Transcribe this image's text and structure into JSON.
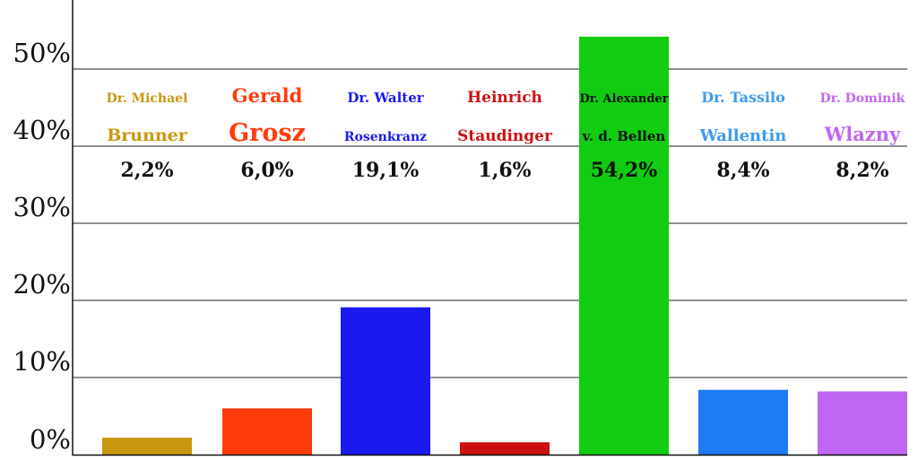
{
  "chart_data": {
    "type": "bar",
    "ylim": [
      0,
      59
    ],
    "y_ticks": [
      {
        "value": 0,
        "label": "0%"
      },
      {
        "value": 10,
        "label": "10%"
      },
      {
        "value": 20,
        "label": "20%"
      },
      {
        "value": 30,
        "label": "30%"
      },
      {
        "value": 40,
        "label": "40%"
      },
      {
        "value": 50,
        "label": "50%"
      }
    ],
    "grid": true,
    "categories": [
      {
        "first": "Dr. Michael",
        "last": "Brunner",
        "value": 2.2,
        "value_label": "2,2%",
        "color": "#c9970f"
      },
      {
        "first": "Gerald",
        "last": "Grosz",
        "value": 6.0,
        "value_label": "6,0%",
        "color": "#ff3b0a"
      },
      {
        "first": "Dr. Walter",
        "last": "Rosenkranz",
        "value": 19.1,
        "value_label": "19,1%",
        "color": "#1a1af0"
      },
      {
        "first": "Heinrich",
        "last": "Staudinger",
        "value": 1.6,
        "value_label": "1,6%",
        "color": "#cc1111"
      },
      {
        "first": "Dr. Alexander",
        "last": "v. d. Bellen",
        "value": 54.2,
        "value_label": "54,2%",
        "color": "#11cc11"
      },
      {
        "first": "Dr. Tassilo",
        "last": "Wallentin",
        "value": 8.4,
        "value_label": "8,4%",
        "color": "#1e7bf5"
      },
      {
        "first": "Dr. Dominik",
        "last": "Wlazny",
        "value": 8.2,
        "value_label": "8,2%",
        "color": "#c066f2"
      }
    ],
    "label_text_colors": [
      "#c9970f",
      "#ff3b0a",
      "#1a1af0",
      "#cc1111",
      "#111111",
      "#3d9af0",
      "#c066f2"
    ]
  }
}
